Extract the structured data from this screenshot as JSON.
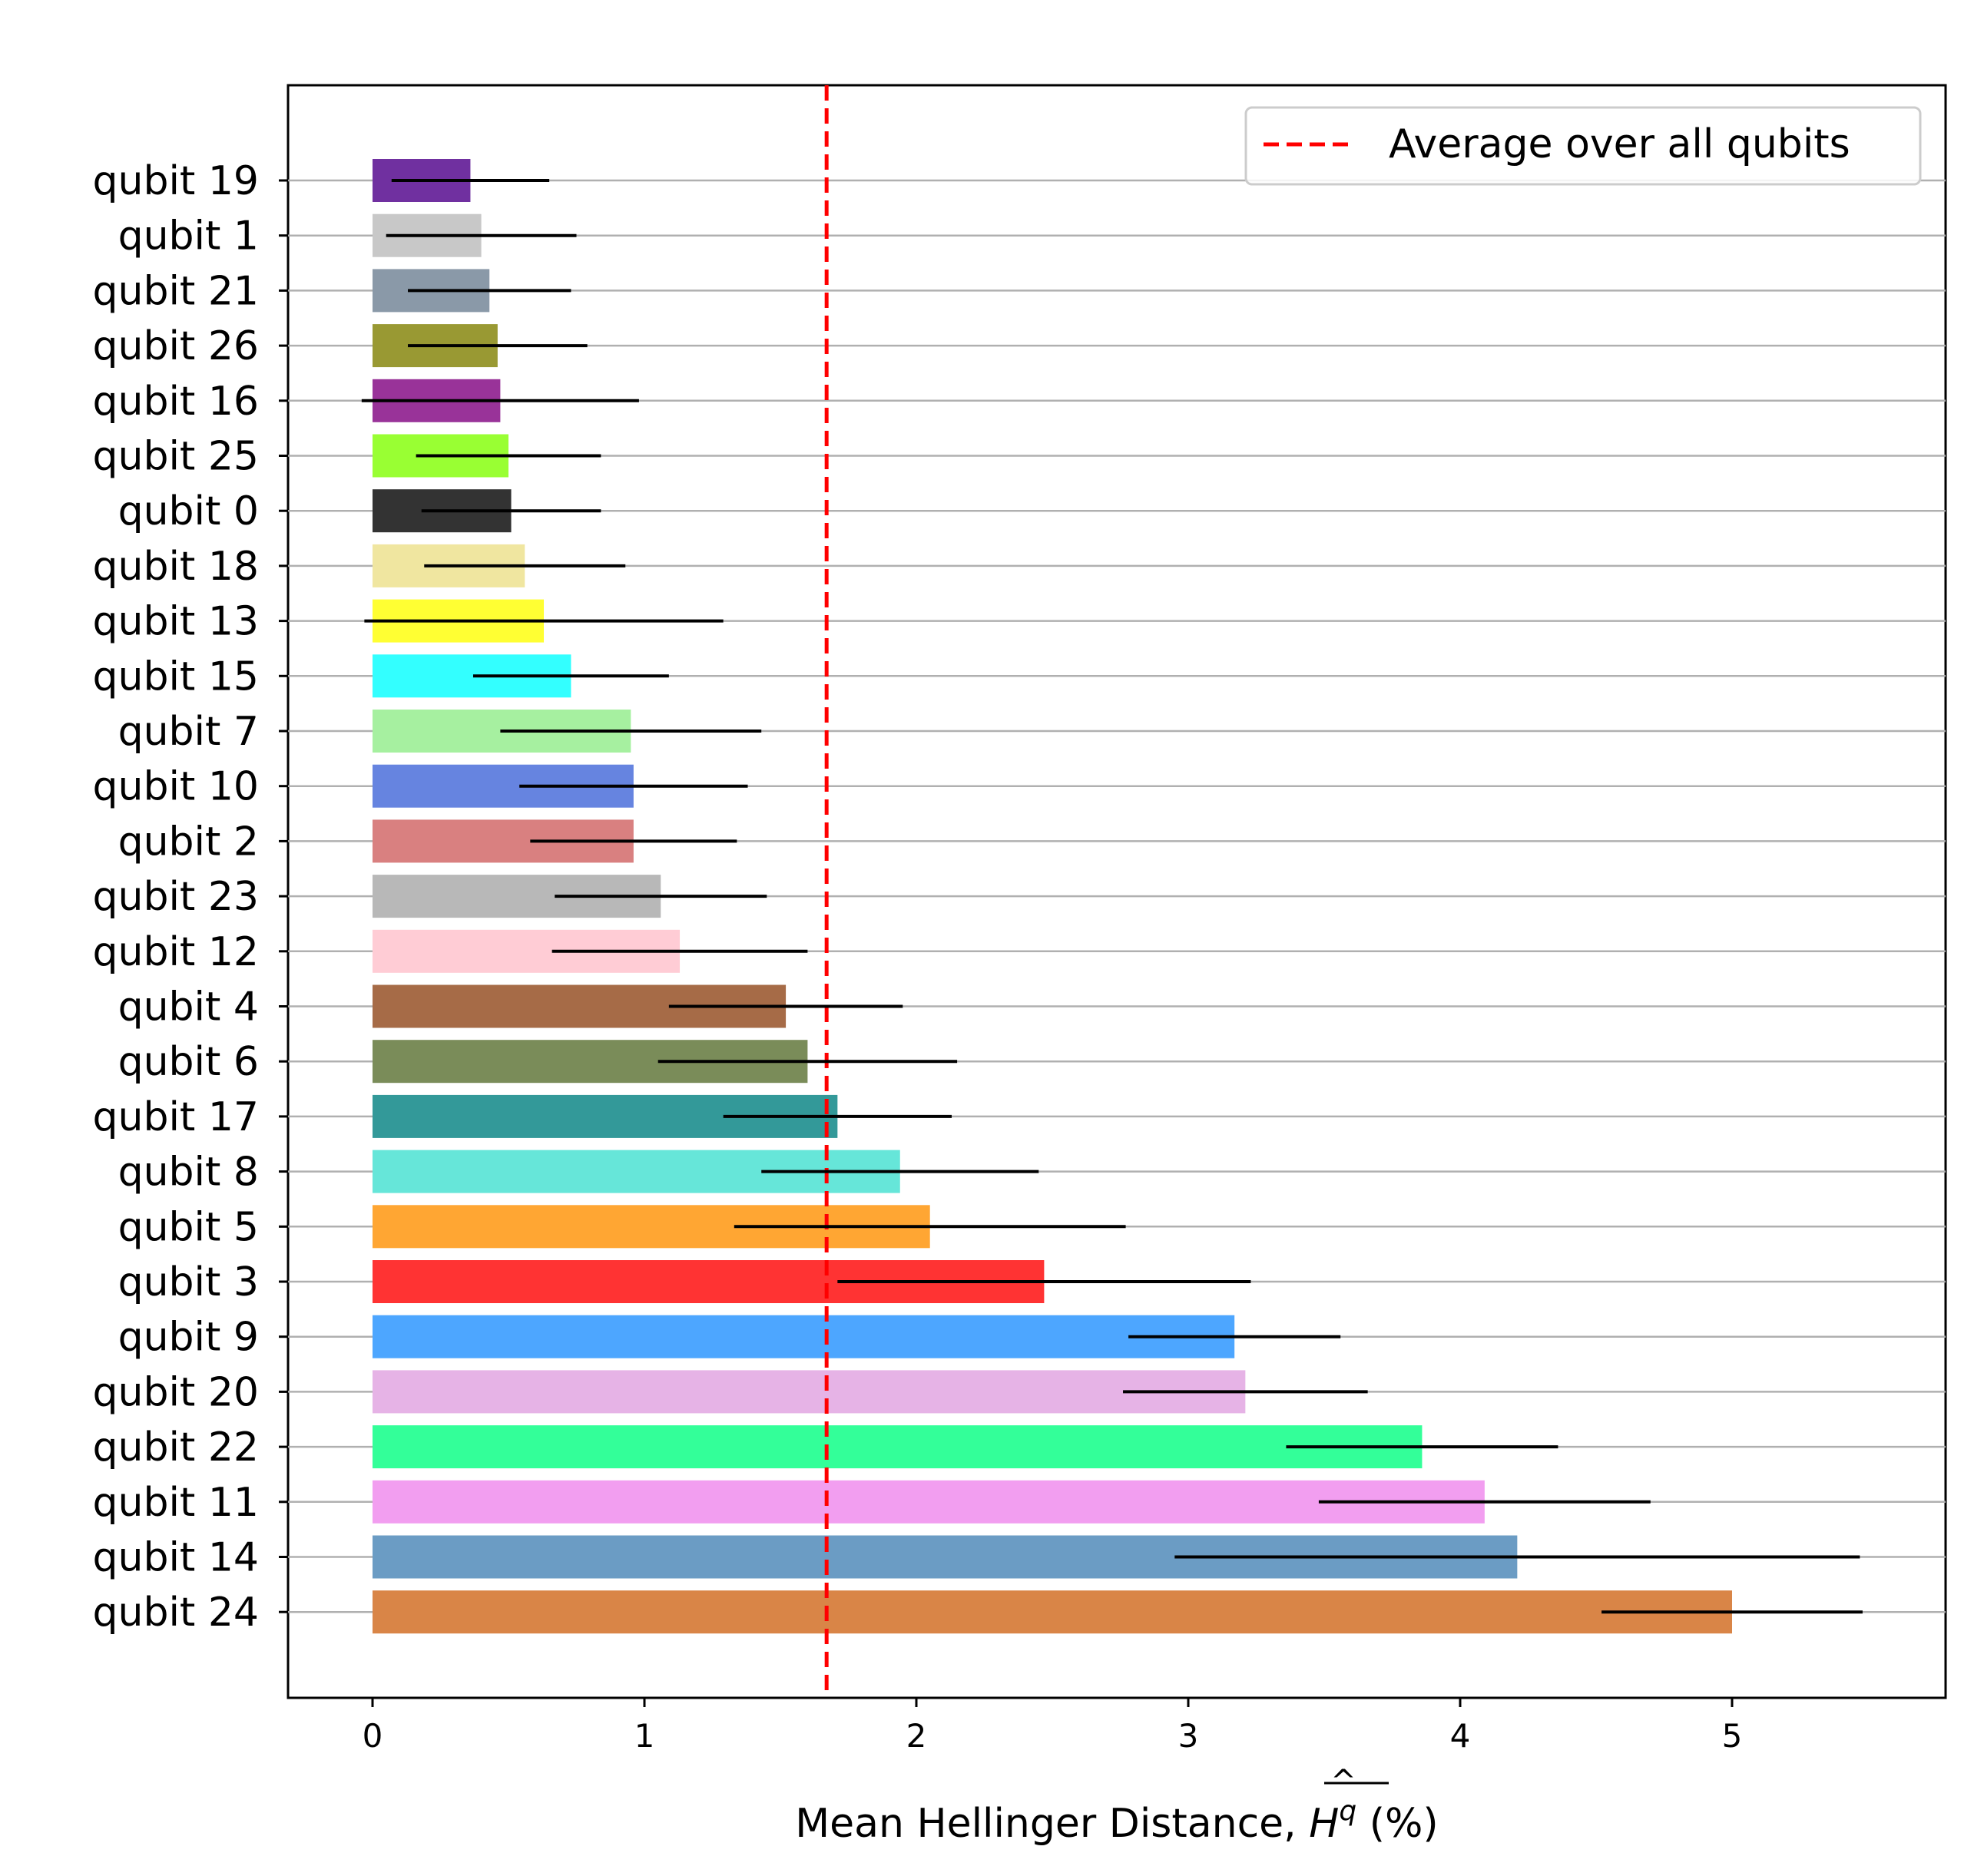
{
  "chart_data": {
    "type": "bar",
    "orientation": "horizontal",
    "xlabel": "Mean Hellinger Distance, ",
    "xlabel_symbol": "H",
    "xlabel_superscript": "q",
    "xlabel_hat": "^",
    "xlabel_unit": " (%)",
    "xlim": [
      -0.31,
      5.78
    ],
    "xticks": [
      "0",
      "1",
      "2",
      "3",
      "4",
      "5"
    ],
    "xtick_values": [
      0,
      1,
      2,
      3,
      4,
      5
    ],
    "grid": "horizontal",
    "legend": {
      "placement": "top-right",
      "label": "Average over all qubits"
    },
    "average_line": {
      "value": 1.67,
      "color": "#ff0000",
      "style": "dashed"
    },
    "categories": [
      "qubit 19",
      "qubit 1",
      "qubit 21",
      "qubit 26",
      "qubit 16",
      "qubit 25",
      "qubit 0",
      "qubit 18",
      "qubit 13",
      "qubit 15",
      "qubit 7",
      "qubit 10",
      "qubit 2",
      "qubit 23",
      "qubit 12",
      "qubit 4",
      "qubit 6",
      "qubit 17",
      "qubit 8",
      "qubit 5",
      "qubit 3",
      "qubit 9",
      "qubit 20",
      "qubit 22",
      "qubit 11",
      "qubit 14",
      "qubit 24"
    ],
    "values": [
      0.36,
      0.4,
      0.43,
      0.46,
      0.47,
      0.5,
      0.51,
      0.56,
      0.63,
      0.73,
      0.95,
      0.96,
      0.96,
      1.06,
      1.13,
      1.52,
      1.6,
      1.71,
      1.94,
      2.05,
      2.47,
      3.17,
      3.21,
      3.86,
      4.09,
      4.21,
      5.0
    ],
    "error": [
      0.29,
      0.35,
      0.3,
      0.33,
      0.51,
      0.34,
      0.33,
      0.37,
      0.66,
      0.36,
      0.48,
      0.42,
      0.38,
      0.39,
      0.47,
      0.43,
      0.55,
      0.42,
      0.51,
      0.72,
      0.76,
      0.39,
      0.45,
      0.5,
      0.61,
      1.26,
      0.48
    ],
    "colors": [
      "#7030a0",
      "#c8c8c8",
      "#8a99a8",
      "#999933",
      "#993399",
      "#99ff33",
      "#333333",
      "#f0e6a0",
      "#ffff33",
      "#33ffff",
      "#a6f0a0",
      "#6684e0",
      "#d98080",
      "#b8b8b8",
      "#ffccd5",
      "#a66b47",
      "#7a8c59",
      "#339999",
      "#66e6d9",
      "#ffa633",
      "#ff3333",
      "#4da6ff",
      "#e6b3e6",
      "#33ff99",
      "#f29ef0",
      "#6b9cc4",
      "#d98547"
    ]
  }
}
